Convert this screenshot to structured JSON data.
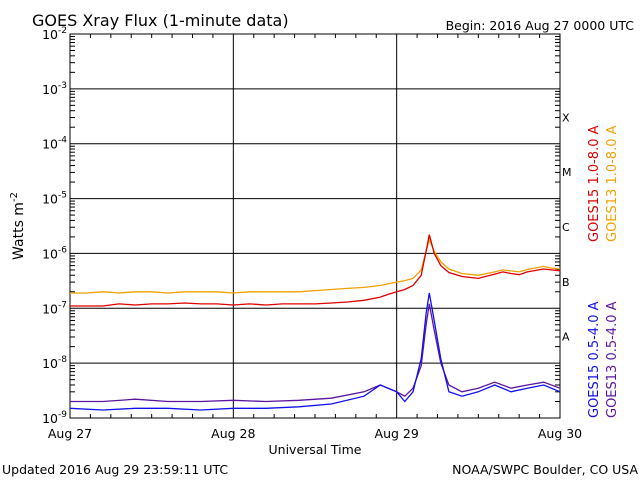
{
  "header": {
    "title": "GOES Xray Flux (1-minute data)",
    "begin": "Begin:  2016 Aug 27 0000 UTC"
  },
  "footer": {
    "updated": "Updated 2016 Aug 29 23:59:11 UTC",
    "source": "NOAA/SWPC Boulder, CO USA"
  },
  "colors": {
    "goes15_long": "#dd0000",
    "goes13_long": "#f0a000",
    "goes15_short": "#1010ee",
    "goes13_short": "#5a14a0",
    "grid": "#000000"
  },
  "chart_data": {
    "type": "line",
    "title": "GOES Xray Flux (1-minute data)",
    "xlabel": "Universal Time",
    "ylabel_main": "Watts m",
    "ylabel_sup": "-2",
    "yscale": "log",
    "ylim": [
      1e-09,
      0.01
    ],
    "y_ticks": [
      {
        "base": "10",
        "exp": "-2",
        "value": 0.01
      },
      {
        "base": "10",
        "exp": "-3",
        "value": 0.001
      },
      {
        "base": "10",
        "exp": "-4",
        "value": 0.0001
      },
      {
        "base": "10",
        "exp": "-5",
        "value": 1e-05
      },
      {
        "base": "10",
        "exp": "-6",
        "value": 1e-06
      },
      {
        "base": "10",
        "exp": "-7",
        "value": 1e-07
      },
      {
        "base": "10",
        "exp": "-8",
        "value": 1e-08
      },
      {
        "base": "10",
        "exp": "-9",
        "value": 1e-09
      }
    ],
    "x_ticks": [
      {
        "label": "Aug 27",
        "day": 0
      },
      {
        "label": "Aug 28",
        "day": 1
      },
      {
        "label": "Aug 29",
        "day": 2
      },
      {
        "label": "Aug 30",
        "day": 3
      }
    ],
    "xlim_days": [
      0,
      3
    ],
    "flare_classes": [
      {
        "label": "X",
        "value": 0.0001
      },
      {
        "label": "M",
        "value": 1e-05
      },
      {
        "label": "C",
        "value": 1e-06
      },
      {
        "label": "B",
        "value": 1e-07
      },
      {
        "label": "A",
        "value": 1e-08
      }
    ],
    "grid": true,
    "legend_position": "right",
    "series": [
      {
        "name": "GOES15 1.0-8.0 A",
        "color_key": "goes15_long",
        "x": [
          0,
          0.1,
          0.2,
          0.3,
          0.4,
          0.5,
          0.6,
          0.7,
          0.8,
          0.9,
          1.0,
          1.1,
          1.2,
          1.3,
          1.4,
          1.5,
          1.6,
          1.7,
          1.8,
          1.9,
          1.95,
          2.0,
          2.05,
          2.1,
          2.15,
          2.18,
          2.2,
          2.23,
          2.27,
          2.32,
          2.4,
          2.5,
          2.6,
          2.65,
          2.7,
          2.75,
          2.8,
          2.9,
          2.95,
          3.0
        ],
        "y": [
          1.1e-07,
          1.1e-07,
          1.1e-07,
          1.2e-07,
          1.15e-07,
          1.2e-07,
          1.2e-07,
          1.25e-07,
          1.2e-07,
          1.2e-07,
          1.15e-07,
          1.2e-07,
          1.15e-07,
          1.2e-07,
          1.2e-07,
          1.2e-07,
          1.25e-07,
          1.3e-07,
          1.4e-07,
          1.6e-07,
          1.8e-07,
          2e-07,
          2.2e-07,
          2.6e-07,
          4e-07,
          1.1e-06,
          2.2e-06,
          1e-06,
          6e-07,
          4.5e-07,
          3.8e-07,
          3.5e-07,
          4.2e-07,
          4.6e-07,
          4.3e-07,
          4.1e-07,
          4.6e-07,
          5.2e-07,
          5e-07,
          4.8e-07
        ]
      },
      {
        "name": "GOES13 1.0-8.0 A",
        "color_key": "goes13_long",
        "x": [
          0,
          0.1,
          0.2,
          0.3,
          0.4,
          0.5,
          0.6,
          0.7,
          0.8,
          0.9,
          1.0,
          1.1,
          1.2,
          1.3,
          1.4,
          1.5,
          1.6,
          1.7,
          1.8,
          1.9,
          1.95,
          2.0,
          2.05,
          2.1,
          2.15,
          2.18,
          2.2,
          2.23,
          2.27,
          2.32,
          2.4,
          2.5,
          2.6,
          2.65,
          2.7,
          2.75,
          2.8,
          2.9,
          2.95,
          3.0
        ],
        "y": [
          1.9e-07,
          1.9e-07,
          2e-07,
          1.9e-07,
          2e-07,
          2e-07,
          1.9e-07,
          2e-07,
          2e-07,
          2e-07,
          1.9e-07,
          2e-07,
          2e-07,
          2e-07,
          2e-07,
          2.1e-07,
          2.2e-07,
          2.3e-07,
          2.4e-07,
          2.6e-07,
          2.8e-07,
          3e-07,
          3.2e-07,
          3.5e-07,
          5e-07,
          1.1e-06,
          1.8e-06,
          1.1e-06,
          7e-07,
          5.2e-07,
          4.3e-07,
          4e-07,
          4.6e-07,
          5e-07,
          4.8e-07,
          4.6e-07,
          5.1e-07,
          5.8e-07,
          5.4e-07,
          5.2e-07
        ]
      },
      {
        "name": "GOES15 0.5-4.0 A",
        "color_key": "goes15_short",
        "x": [
          0,
          0.2,
          0.4,
          0.6,
          0.8,
          1.0,
          1.2,
          1.4,
          1.6,
          1.8,
          1.9,
          2.0,
          2.05,
          2.1,
          2.15,
          2.18,
          2.2,
          2.23,
          2.27,
          2.32,
          2.4,
          2.5,
          2.6,
          2.7,
          2.8,
          2.9,
          3.0
        ],
        "y": [
          1.5e-09,
          1.4e-09,
          1.5e-09,
          1.5e-09,
          1.4e-09,
          1.5e-09,
          1.5e-09,
          1.6e-09,
          1.8e-09,
          2.5e-09,
          4e-09,
          3e-09,
          2e-09,
          3e-09,
          1.2e-08,
          8e-08,
          1.9e-07,
          6e-08,
          1.2e-08,
          3e-09,
          2.5e-09,
          3e-09,
          4e-09,
          3e-09,
          3.5e-09,
          4e-09,
          3e-09
        ]
      },
      {
        "name": "GOES13 0.5-4.0 A",
        "color_key": "goes13_short",
        "x": [
          0,
          0.2,
          0.4,
          0.6,
          0.8,
          1.0,
          1.2,
          1.4,
          1.6,
          1.8,
          1.9,
          2.0,
          2.05,
          2.1,
          2.15,
          2.18,
          2.2,
          2.23,
          2.27,
          2.32,
          2.4,
          2.5,
          2.6,
          2.7,
          2.8,
          2.9,
          3.0
        ],
        "y": [
          2e-09,
          2e-09,
          2.2e-09,
          2e-09,
          2e-09,
          2.1e-09,
          2e-09,
          2.1e-09,
          2.3e-09,
          3e-09,
          4e-09,
          3e-09,
          2.5e-09,
          3.5e-09,
          9e-09,
          5e-08,
          1.2e-07,
          4e-08,
          1e-08,
          4e-09,
          3e-09,
          3.5e-09,
          4.5e-09,
          3.5e-09,
          4e-09,
          4.5e-09,
          3.5e-09
        ]
      }
    ]
  }
}
